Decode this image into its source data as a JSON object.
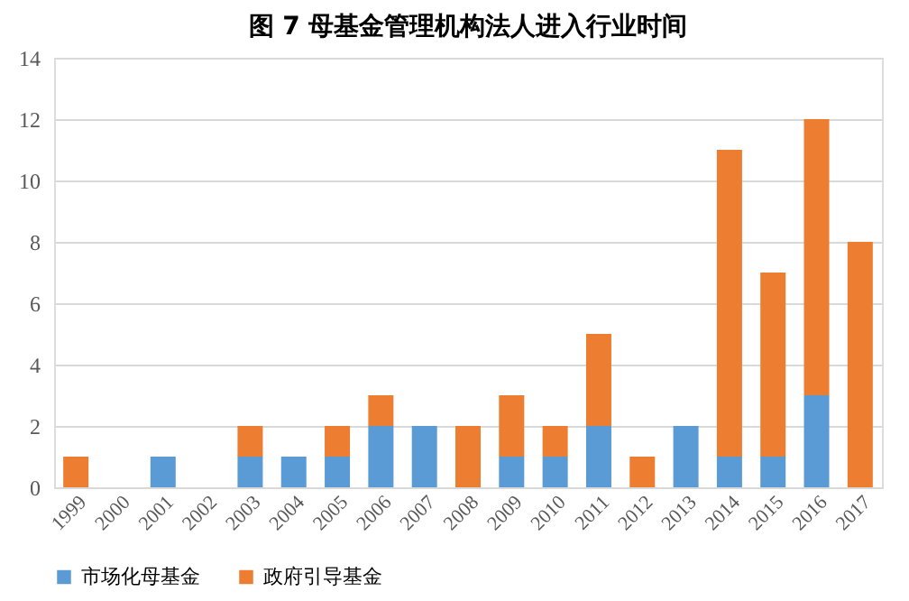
{
  "chart_data": {
    "type": "bar",
    "title": "图 7  母基金管理机构法人进入行业时间",
    "categories": [
      "1999",
      "2000",
      "2001",
      "2002",
      "2003",
      "2004",
      "2005",
      "2006",
      "2007",
      "2008",
      "2009",
      "2010",
      "2011",
      "2012",
      "2013",
      "2014",
      "2015",
      "2016",
      "2017"
    ],
    "stacked": true,
    "series": [
      {
        "name": "市场化母基金",
        "color": "#5b9bd5",
        "values": [
          0,
          0,
          1,
          0,
          1,
          1,
          1,
          2,
          2,
          0,
          1,
          1,
          2,
          0,
          2,
          1,
          1,
          3,
          0
        ]
      },
      {
        "name": "政府引导基金",
        "color": "#ed7d31",
        "values": [
          1,
          0,
          0,
          0,
          1,
          0,
          1,
          1,
          0,
          2,
          2,
          1,
          3,
          1,
          0,
          10,
          6,
          9,
          8
        ]
      }
    ],
    "ylim": [
      0,
      14
    ],
    "yticks": [
      0,
      2,
      4,
      6,
      8,
      10,
      12,
      14
    ],
    "grid": "y",
    "legend": "bottom"
  }
}
